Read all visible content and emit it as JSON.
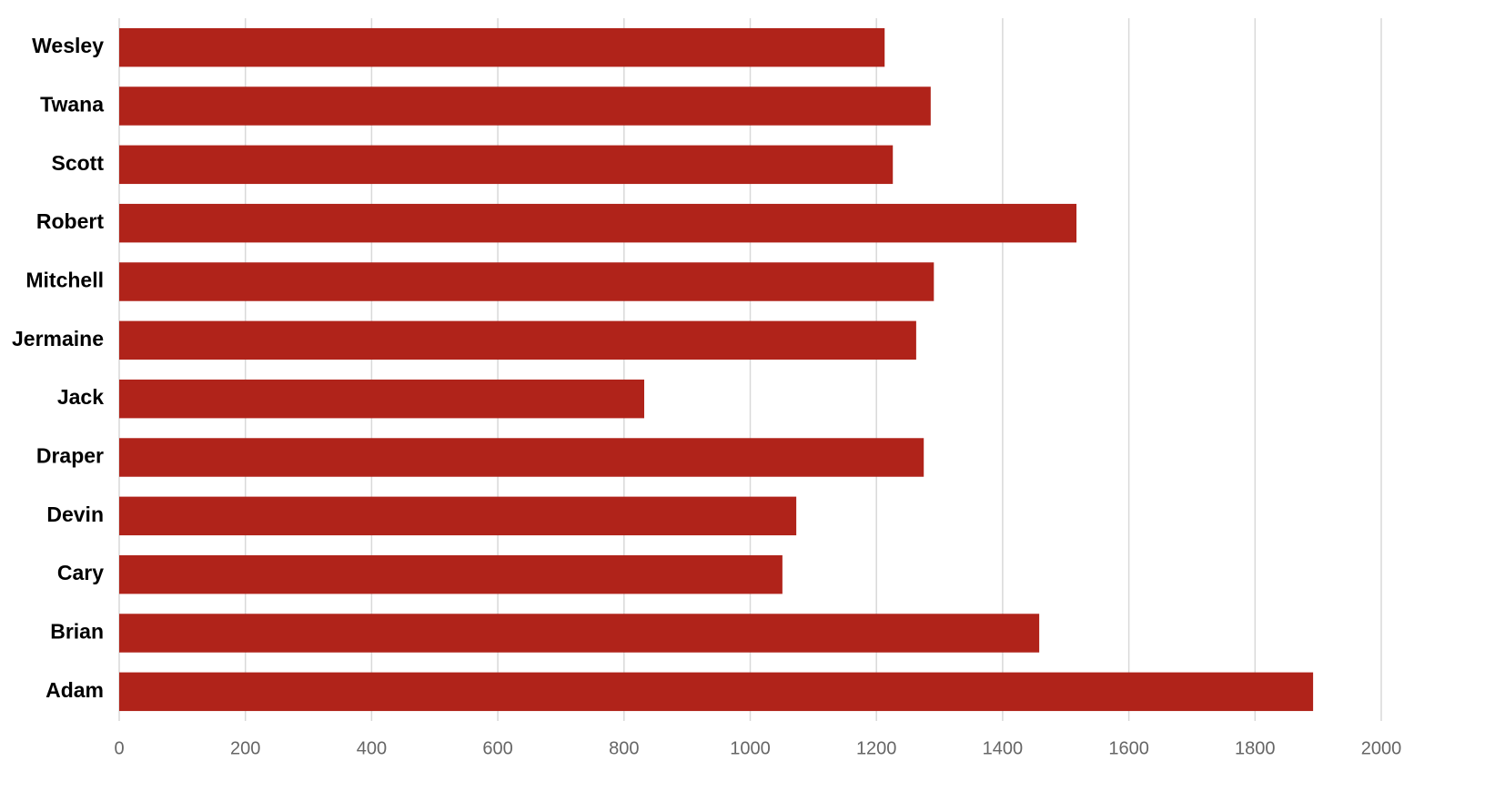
{
  "chart_data": {
    "type": "bar",
    "orientation": "horizontal",
    "categories": [
      "Wesley",
      "Twana",
      "Scott",
      "Robert",
      "Mitchell",
      "Jermaine",
      "Jack",
      "Draper",
      "Devin",
      "Cary",
      "Brian",
      "Adam"
    ],
    "values": [
      1213,
      1286,
      1226,
      1517,
      1291,
      1263,
      832,
      1275,
      1073,
      1051,
      1458,
      1892
    ],
    "color": "#b0231a",
    "xlim": [
      0,
      2000
    ],
    "xticks": [
      0,
      200,
      400,
      600,
      800,
      1000,
      1200,
      1400,
      1600,
      1800,
      2000
    ],
    "grid": true
  }
}
